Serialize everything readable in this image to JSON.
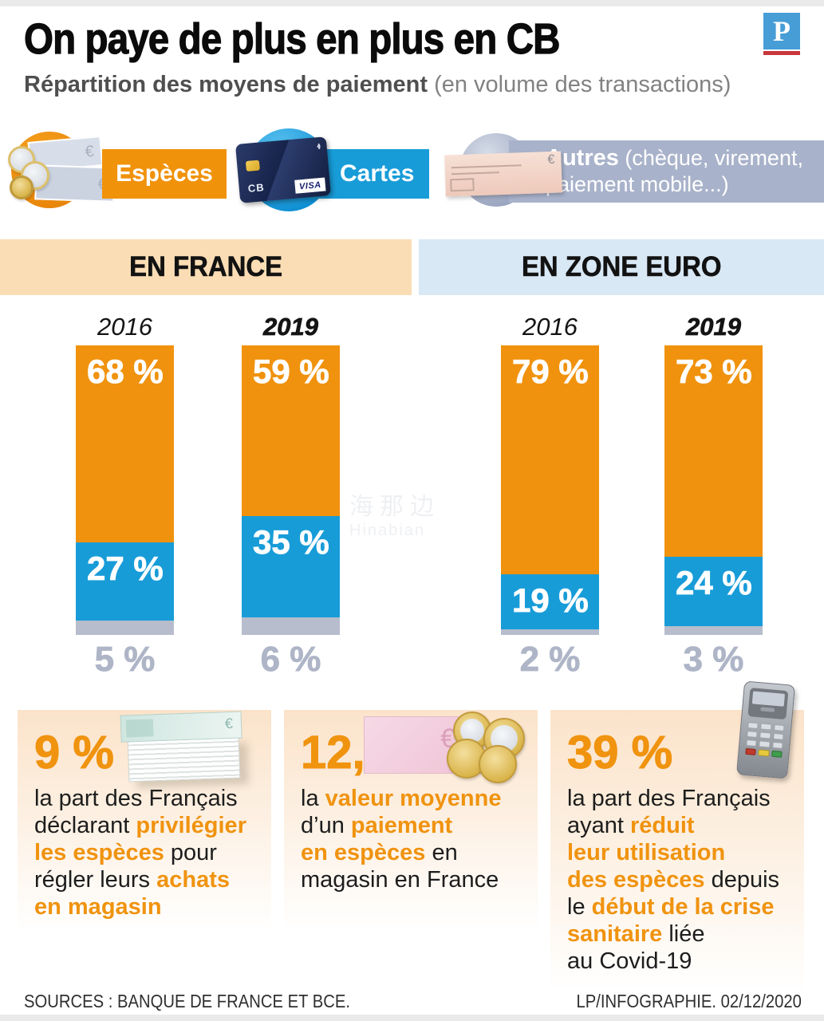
{
  "header": {
    "title": "On paye de plus en plus en CB",
    "subtitle_bold": "Répartition des moyens de paiement",
    "subtitle_rest": " (en volume des transactions)",
    "logo_letter": "P"
  },
  "legend": {
    "especes": {
      "label": "Espèces",
      "color": "#F0920A",
      "currency": "€"
    },
    "cartes": {
      "label": "Cartes",
      "color": "#189CD8",
      "card_network": "CB",
      "card_brand": "VISA"
    },
    "autres": {
      "label_bold": "Autres",
      "label_rest": " (chèque, virement,\npaiement mobile...)",
      "color": "#A8B2CA",
      "currency": "€"
    }
  },
  "chart_data": {
    "type": "bar",
    "stacked": true,
    "unit": "%",
    "legend": [
      "Espèces",
      "Cartes",
      "Autres"
    ],
    "colors": {
      "especes": "#F0920D",
      "cartes": "#189CD8",
      "autres": "#B7BDCC"
    },
    "ylim": [
      0,
      100
    ],
    "grid": false,
    "groups": [
      {
        "label": "EN FRANCE",
        "bars": [
          {
            "year": "2016",
            "emphasis": false,
            "especes": 68,
            "cartes": 27,
            "autres": 5
          },
          {
            "year": "2019",
            "emphasis": true,
            "especes": 59,
            "cartes": 35,
            "autres": 6
          }
        ]
      },
      {
        "label": "EN ZONE EURO",
        "bars": [
          {
            "year": "2016",
            "emphasis": false,
            "especes": 79,
            "cartes": 19,
            "autres": 2
          },
          {
            "year": "2019",
            "emphasis": true,
            "especes": 73,
            "cartes": 24,
            "autres": 3
          }
        ]
      }
    ]
  },
  "facts": [
    {
      "value": "9 %",
      "icon": "banknote-stack-icon",
      "segments": [
        {
          "t": "la part des Français\ndéclarant ",
          "h": false
        },
        {
          "t": "privilégier\nles espèces",
          "h": true
        },
        {
          "t": " pour\nrégler leurs ",
          "h": false
        },
        {
          "t": "achats\nen magasin",
          "h": true
        }
      ]
    },
    {
      "value": "12,30 €",
      "icon": "banknote-coins-icon",
      "segments": [
        {
          "t": "la ",
          "h": false
        },
        {
          "t": "valeur moyenne",
          "h": true
        },
        {
          "t": "\nd’un ",
          "h": false
        },
        {
          "t": "paiement\nen espèces",
          "h": true
        },
        {
          "t": " en\nmagasin en France",
          "h": false
        }
      ]
    },
    {
      "value": "39 %",
      "icon": "card-terminal-icon",
      "segments": [
        {
          "t": "la part des Français\nayant ",
          "h": false
        },
        {
          "t": "réduit\nleur utilisation\ndes espèces",
          "h": true
        },
        {
          "t": " depuis\nle ",
          "h": false
        },
        {
          "t": "début de la crise\nsanitaire",
          "h": true
        },
        {
          "t": " liée\nau Covid-19",
          "h": false
        }
      ]
    }
  ],
  "footer": {
    "sources": "SOURCES : BANQUE DE FRANCE ET BCE.",
    "credit": "LP/INFOGRAPHIE.  02/12/2020"
  },
  "watermark": {
    "line1": "海那边",
    "line2": "Hinabian"
  }
}
